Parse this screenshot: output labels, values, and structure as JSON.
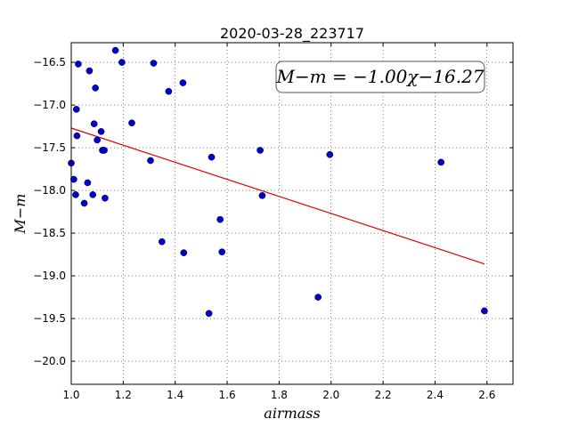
{
  "chart_data": {
    "type": "scatter",
    "title": "2020-03-28_223717",
    "xlabel": "airmass",
    "ylabel": "M−m",
    "xlim": [
      1.0,
      2.7
    ],
    "ylim": [
      -20.27,
      -16.27
    ],
    "y_inverted": true,
    "grid": true,
    "x_ticks": [
      1.0,
      1.2,
      1.4,
      1.6,
      1.8,
      2.0,
      2.2,
      2.4,
      2.6
    ],
    "x_tick_labels": [
      "1.0",
      "1.2",
      "1.4",
      "1.6",
      "1.8",
      "2.0",
      "2.2",
      "2.4",
      "2.6"
    ],
    "y_ticks": [
      -16.5,
      -17.0,
      -17.5,
      -18.0,
      -18.5,
      -19.0,
      -19.5,
      -20.0
    ],
    "y_tick_labels": [
      "−16.5",
      "−17.0",
      "−17.5",
      "−18.0",
      "−18.5",
      "−19.0",
      "−19.5",
      "−20.0"
    ],
    "annotation": "M−m = −1.00χ−16.27",
    "colors": {
      "points": "#0000cc",
      "fit_line": "#dd0000"
    },
    "series": [
      {
        "values": [
          {
            "x": 1.0,
            "y": -17.68
          },
          {
            "x": 1.01,
            "y": -17.87
          },
          {
            "x": 1.017,
            "y": -18.05
          },
          {
            "x": 1.02,
            "y": -17.05
          },
          {
            "x": 1.022,
            "y": -17.36
          },
          {
            "x": 1.027,
            "y": -16.52
          },
          {
            "x": 1.05,
            "y": -18.15
          },
          {
            "x": 1.063,
            "y": -17.91
          },
          {
            "x": 1.07,
            "y": -16.6
          },
          {
            "x": 1.083,
            "y": -18.05
          },
          {
            "x": 1.088,
            "y": -17.22
          },
          {
            "x": 1.093,
            "y": -16.8
          },
          {
            "x": 1.1,
            "y": -17.41
          },
          {
            "x": 1.115,
            "y": -17.31
          },
          {
            "x": 1.12,
            "y": -17.53
          },
          {
            "x": 1.127,
            "y": -17.53
          },
          {
            "x": 1.13,
            "y": -18.09
          },
          {
            "x": 1.17,
            "y": -16.36
          },
          {
            "x": 1.195,
            "y": -16.5
          },
          {
            "x": 1.233,
            "y": -17.21
          },
          {
            "x": 1.305,
            "y": -17.65
          },
          {
            "x": 1.317,
            "y": -16.51
          },
          {
            "x": 1.349,
            "y": -18.6
          },
          {
            "x": 1.375,
            "y": -16.84
          },
          {
            "x": 1.43,
            "y": -16.74
          },
          {
            "x": 1.433,
            "y": -18.73
          },
          {
            "x": 1.53,
            "y": -19.44
          },
          {
            "x": 1.54,
            "y": -17.61
          },
          {
            "x": 1.573,
            "y": -18.34
          },
          {
            "x": 1.58,
            "y": -18.72
          },
          {
            "x": 1.727,
            "y": -17.53
          },
          {
            "x": 1.735,
            "y": -18.06
          },
          {
            "x": 1.95,
            "y": -19.25
          },
          {
            "x": 1.995,
            "y": -17.58
          },
          {
            "x": 2.423,
            "y": -17.67
          },
          {
            "x": 2.59,
            "y": -19.41
          }
        ]
      },
      {
        "type": "line",
        "values": [
          {
            "x": 1.0,
            "y": -17.27
          },
          {
            "x": 2.59,
            "y": -18.86
          }
        ]
      }
    ]
  }
}
